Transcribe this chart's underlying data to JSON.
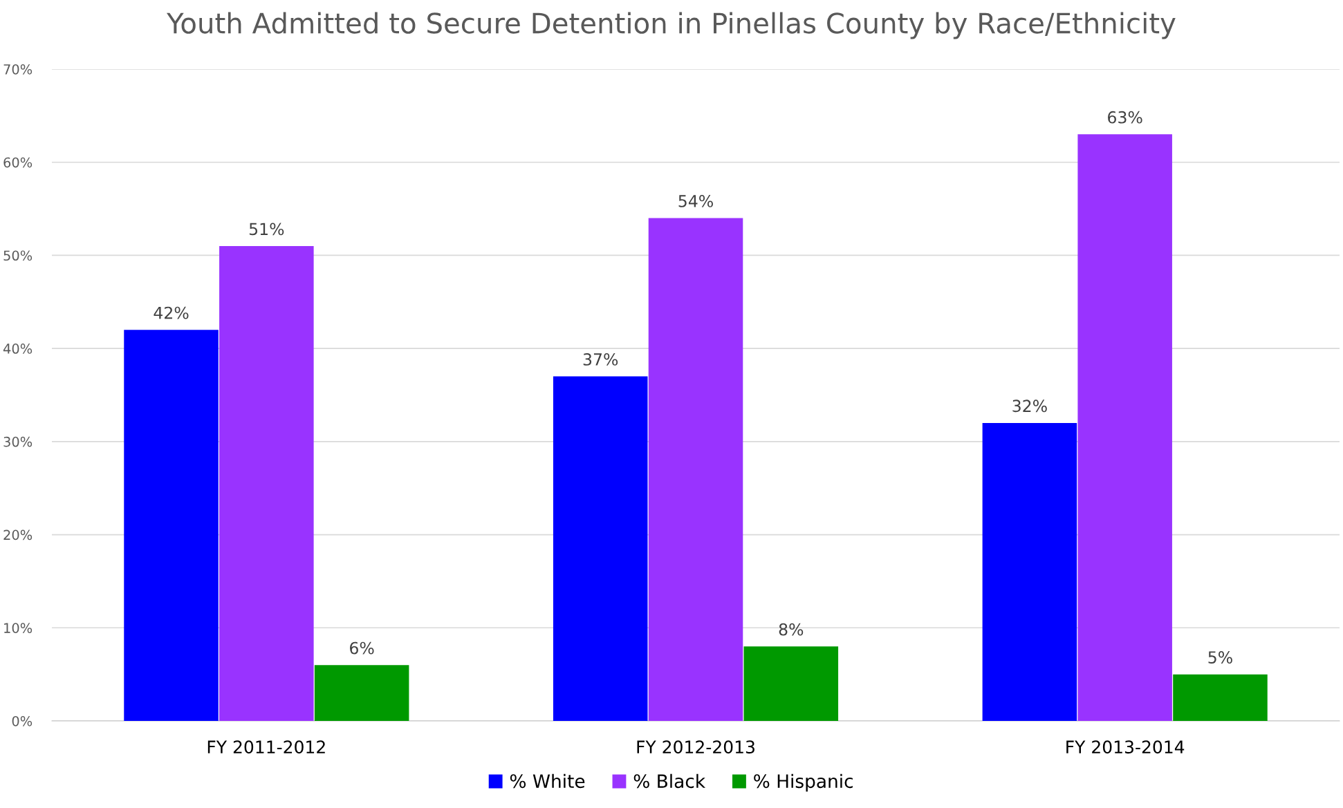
{
  "chart_data": {
    "type": "bar",
    "title": "Youth Admitted to Secure Detention in Pinellas County by Race/Ethnicity",
    "categories": [
      "FY 2011-2012",
      "FY 2012-2013",
      "FY 2013-2014"
    ],
    "series": [
      {
        "name": "% White",
        "color": "#0000ff",
        "values": [
          42,
          37,
          32
        ],
        "value_labels": [
          "42%",
          "37%",
          "32%"
        ]
      },
      {
        "name": "% Black",
        "color": "#9933ff",
        "values": [
          51,
          54,
          63
        ],
        "value_labels": [
          "51%",
          "54%",
          "63%"
        ]
      },
      {
        "name": "% Hispanic",
        "color": "#009900",
        "values": [
          6,
          8,
          5
        ],
        "value_labels": [
          "6%",
          "8%",
          "5%"
        ]
      }
    ],
    "ylim": [
      0,
      70
    ],
    "yticks": [
      {
        "value": 0,
        "label": "0%"
      },
      {
        "value": 10,
        "label": "10%"
      },
      {
        "value": 20,
        "label": "20%"
      },
      {
        "value": 30,
        "label": "30%"
      },
      {
        "value": 40,
        "label": "40%"
      },
      {
        "value": 50,
        "label": "50%"
      },
      {
        "value": 60,
        "label": "60%"
      },
      {
        "value": 70,
        "label": "70%"
      }
    ],
    "grid": "y",
    "legend": "bottom"
  }
}
